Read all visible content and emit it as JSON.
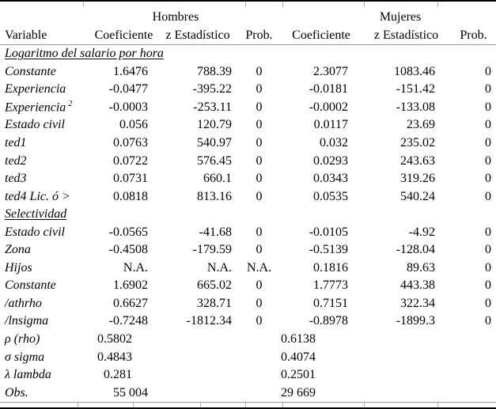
{
  "table": {
    "groups": {
      "hombres": "Hombres",
      "mujeres": "Mujeres"
    },
    "columns": [
      "Variable",
      "Coeficiente",
      "z Estadístico",
      "Prob.",
      "Coeficiente",
      "z Estadístico",
      "Prob."
    ],
    "rows": [
      {
        "type": "section",
        "label": "Logaritmo del salario por hora"
      },
      {
        "type": "data",
        "variable": "Constante",
        "cells": [
          "1.6476",
          "788.39",
          "0",
          "2.3077",
          "1083.46",
          "0"
        ]
      },
      {
        "type": "data",
        "variable": "Experiencia",
        "cells": [
          "-0.0477",
          "-395.22",
          "0",
          "-0.0181",
          "-151.42",
          "0"
        ]
      },
      {
        "type": "data",
        "variable": "Experiencia",
        "sup": "2",
        "cells": [
          "-0.0003",
          "-253.11",
          "0",
          "-0.0002",
          "-133.08",
          "0"
        ]
      },
      {
        "type": "data",
        "variable": "Estado civil",
        "cells": [
          "0.056",
          "120.79",
          "0",
          "0.0117",
          "23.69",
          "0"
        ]
      },
      {
        "type": "data",
        "variable": "ted1",
        "cells": [
          "0.0763",
          "540.97",
          "0",
          "0.032",
          "235.02",
          "0"
        ]
      },
      {
        "type": "data",
        "variable": "ted2",
        "cells": [
          "0.0722",
          "576.45",
          "0",
          "0.0293",
          "243.63",
          "0"
        ]
      },
      {
        "type": "data",
        "variable": "ted3",
        "cells": [
          "0.0731",
          "660.1",
          "0",
          "0.0343",
          "319.26",
          "0"
        ]
      },
      {
        "type": "data",
        "variable": "ted4 Lic. ó >",
        "cells": [
          "0.0818",
          "813.16",
          "0",
          "0.0535",
          "540.24",
          "0"
        ]
      },
      {
        "type": "section",
        "label": "Selectividad"
      },
      {
        "type": "data",
        "variable": "Estado civil",
        "cells": [
          "-0.0565",
          "-41.68",
          "0",
          "-0.0105",
          "-4.92",
          "0"
        ]
      },
      {
        "type": "data",
        "variable": "Zona",
        "cells": [
          "-0.4508",
          "-179.59",
          "0",
          "-0.5139",
          "-128.04",
          "0"
        ]
      },
      {
        "type": "data",
        "variable": "Hijos",
        "cells": [
          "N.A.",
          "N.A.",
          "N.A.",
          "0.1816",
          "89.63",
          "0"
        ]
      },
      {
        "type": "data",
        "variable": "Constante",
        "cells": [
          "1.6902",
          "665.02",
          "0",
          "1.7773",
          "443.38",
          "0"
        ]
      },
      {
        "type": "data",
        "variable": "/athrho",
        "cells": [
          "0.6627",
          "328.71",
          "0",
          "0.7151",
          "322.34",
          "0"
        ]
      },
      {
        "type": "data",
        "variable": "/lnsigma",
        "cells": [
          "-0.7248",
          "-1812.34",
          "0",
          "-0.8978",
          "-1899.3",
          "0"
        ]
      },
      {
        "type": "data",
        "variable": "ρ (rho)",
        "shift_h": true,
        "shift_m": true,
        "cells": [
          "0.5802",
          "",
          "",
          "0.6138",
          "",
          ""
        ]
      },
      {
        "type": "data",
        "variable": "σ sigma",
        "shift_h": true,
        "shift_m": true,
        "cells": [
          "0.4843",
          "",
          "",
          "0.4074",
          "",
          ""
        ]
      },
      {
        "type": "data",
        "variable": "λ lambda",
        "shift_h": true,
        "shift_m": true,
        "cells": [
          "0.281",
          "",
          "",
          "0.2501",
          "",
          ""
        ]
      },
      {
        "type": "data",
        "variable": "Obs.",
        "shift_m": true,
        "cells": [
          "55 004",
          "",
          "",
          "29 669",
          "",
          ""
        ]
      }
    ]
  }
}
